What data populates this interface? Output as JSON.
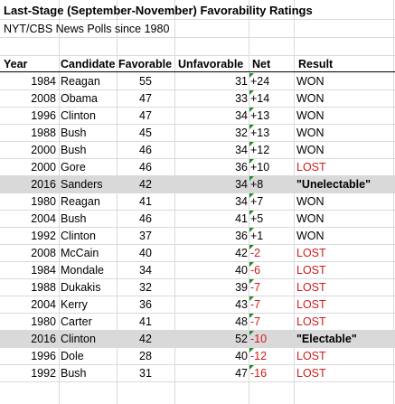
{
  "title": "Last-Stage (September-November) Favorability Ratings",
  "subtitle": "NYT/CBS News Polls since 1980",
  "headers": {
    "year": "Year",
    "candidate": "Candidate",
    "favorable": "Favorable",
    "unfavorable": "Unfavorable",
    "net": "Net",
    "result": "Result"
  },
  "colors": {
    "lost": "#d11b1b",
    "highlight_row": "#d9d9d9",
    "cell_marker": "#1e8b1e"
  },
  "chart_data": {
    "type": "table",
    "title": "Last-Stage (September-November) Favorability Ratings",
    "subtitle": "NYT/CBS News Polls since 1980",
    "columns": [
      "Year",
      "Candidate",
      "Favorable",
      "Unfavorable",
      "Net",
      "Result"
    ],
    "rows": [
      {
        "year": "1984",
        "candidate": "Reagan",
        "favorable": "55",
        "unfavorable": "31",
        "net": "+24",
        "result": "WON",
        "status": "won",
        "highlight": false
      },
      {
        "year": "2008",
        "candidate": "Obama",
        "favorable": "47",
        "unfavorable": "33",
        "net": "+14",
        "result": "WON",
        "status": "won",
        "highlight": false
      },
      {
        "year": "1996",
        "candidate": "Clinton",
        "favorable": "47",
        "unfavorable": "34",
        "net": "+13",
        "result": "WON",
        "status": "won",
        "highlight": false
      },
      {
        "year": "1988",
        "candidate": "Bush",
        "favorable": "45",
        "unfavorable": "32",
        "net": "+13",
        "result": "WON",
        "status": "won",
        "highlight": false
      },
      {
        "year": "2000",
        "candidate": "Bush",
        "favorable": "46",
        "unfavorable": "34",
        "net": "+12",
        "result": "WON",
        "status": "won",
        "highlight": false
      },
      {
        "year": "2000",
        "candidate": "Gore",
        "favorable": "46",
        "unfavorable": "36",
        "net": "+10",
        "result": "LOST",
        "status": "lost",
        "highlight": false
      },
      {
        "year": "2016",
        "candidate": "Sanders",
        "favorable": "42",
        "unfavorable": "34",
        "net": "+8",
        "result": "\"Unelectable\"",
        "status": "special",
        "highlight": true
      },
      {
        "year": "1980",
        "candidate": "Reagan",
        "favorable": "41",
        "unfavorable": "34",
        "net": "+7",
        "result": "WON",
        "status": "won",
        "highlight": false
      },
      {
        "year": "2004",
        "candidate": "Bush",
        "favorable": "46",
        "unfavorable": "41",
        "net": "+5",
        "result": "WON",
        "status": "won",
        "highlight": false
      },
      {
        "year": "1992",
        "candidate": "Clinton",
        "favorable": "37",
        "unfavorable": "36",
        "net": "+1",
        "result": "WON",
        "status": "won",
        "highlight": false
      },
      {
        "year": "2008",
        "candidate": "McCain",
        "favorable": "40",
        "unfavorable": "42",
        "net": "-2",
        "result": "LOST",
        "status": "lost",
        "highlight": false
      },
      {
        "year": "1984",
        "candidate": "Mondale",
        "favorable": "34",
        "unfavorable": "40",
        "net": "-6",
        "result": "LOST",
        "status": "lost",
        "highlight": false
      },
      {
        "year": "1988",
        "candidate": "Dukakis",
        "favorable": "32",
        "unfavorable": "39",
        "net": "-7",
        "result": "LOST",
        "status": "lost",
        "highlight": false
      },
      {
        "year": "2004",
        "candidate": "Kerry",
        "favorable": "36",
        "unfavorable": "43",
        "net": "-7",
        "result": "LOST",
        "status": "lost",
        "highlight": false
      },
      {
        "year": "1980",
        "candidate": "Carter",
        "favorable": "41",
        "unfavorable": "48",
        "net": "-7",
        "result": "LOST",
        "status": "lost",
        "highlight": false
      },
      {
        "year": "2016",
        "candidate": "Clinton",
        "favorable": "42",
        "unfavorable": "52",
        "net": "-10",
        "result": "\"Electable\"",
        "status": "special",
        "highlight": true
      },
      {
        "year": "1996",
        "candidate": "Dole",
        "favorable": "28",
        "unfavorable": "40",
        "net": "-12",
        "result": "LOST",
        "status": "lost",
        "highlight": false
      },
      {
        "year": "1992",
        "candidate": "Bush",
        "favorable": "31",
        "unfavorable": "47",
        "net": "-16",
        "result": "LOST",
        "status": "lost",
        "highlight": false
      }
    ]
  }
}
